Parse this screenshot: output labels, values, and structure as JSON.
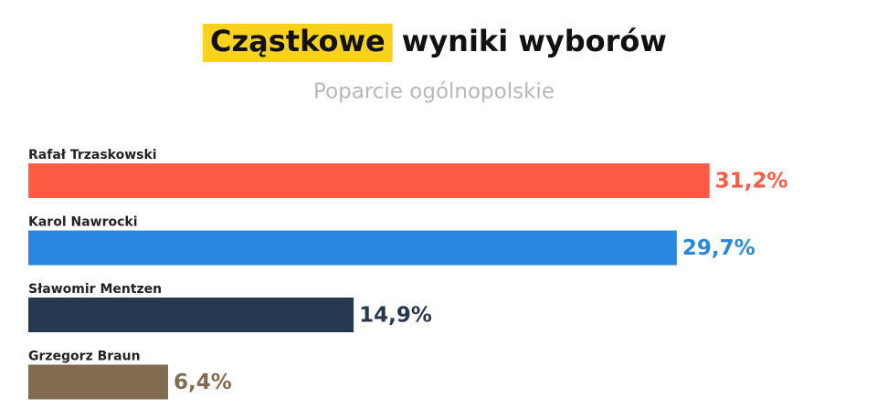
{
  "chart_data": {
    "type": "hbar",
    "title_highlight": "Cząstkowe",
    "title": "wyniki wyborów",
    "subtitle": "Poparcie ogólnopolskie",
    "categories": [
      "Rafał Trzaskowski",
      "Karol Nawrocki",
      "Sławomir Mentzen",
      "Grzegorz Braun"
    ],
    "values": [
      31.2,
      29.7,
      14.9,
      6.4
    ],
    "value_labels": [
      "31,2%",
      "29,7%",
      "14,9%",
      "6,4%"
    ],
    "colors": [
      "#ff5a43",
      "#2a87e0",
      "#263750",
      "#826c50"
    ],
    "highlight_color": "#f8d21c"
  }
}
